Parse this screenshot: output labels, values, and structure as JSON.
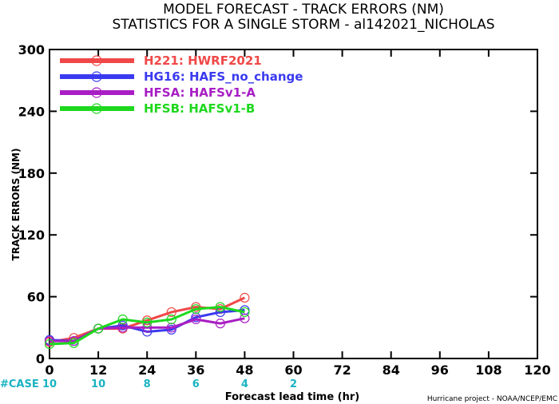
{
  "chart_data": {
    "type": "line",
    "title": "MODEL FORECAST - TRACK ERRORS (NM)",
    "subtitle": "STATISTICS FOR A SINGLE STORM - al142021_NICHOLAS",
    "xlabel": "Forecast lead time (hr)",
    "ylabel": "TRACK ERRORS (NM)",
    "xlim": [
      0,
      120
    ],
    "ylim": [
      0,
      300
    ],
    "xticks": [
      0,
      12,
      24,
      36,
      48,
      60,
      72,
      84,
      96,
      108,
      120
    ],
    "yticks": [
      0,
      60,
      120,
      180,
      240,
      300
    ],
    "grid": false,
    "legend_position": "top-left",
    "x": [
      0,
      6,
      12,
      18,
      24,
      30,
      36,
      42,
      48
    ],
    "series": [
      {
        "name": "H221: HWRF2021",
        "color": "#f04848",
        "values": [
          16,
          20,
          29,
          29,
          37,
          45,
          50,
          48,
          59
        ]
      },
      {
        "name": "HG16: HAFS_no_change",
        "color": "#3a3af0",
        "values": [
          18,
          17,
          29,
          32,
          26,
          28,
          40,
          45,
          47
        ]
      },
      {
        "name": "HFSA: HAFSv1-A",
        "color": "#a81ec4",
        "values": [
          17,
          17,
          29,
          30,
          30,
          30,
          38,
          34,
          39
        ]
      },
      {
        "name": "HFSB: HAFSv1-B",
        "color": "#1ed81e",
        "values": [
          14,
          15,
          29,
          38,
          35,
          38,
          48,
          50,
          45
        ]
      }
    ],
    "cases": {
      "label": "#CASE",
      "x": [
        0,
        12,
        24,
        36,
        48
      ],
      "values": [
        "10",
        "10",
        "8",
        "6",
        "4",
        "2"
      ],
      "x_full": [
        0,
        12,
        24,
        36,
        48,
        60
      ]
    },
    "credit": "Hurricane project - NOAA/NCEP/EMC"
  }
}
